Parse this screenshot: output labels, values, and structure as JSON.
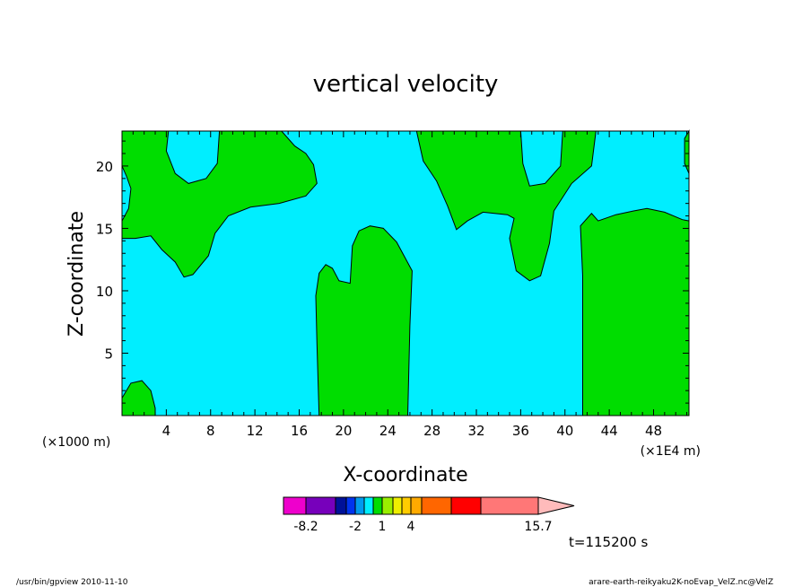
{
  "chart_data": {
    "type": "heatmap",
    "title": "vertical velocity",
    "xlabel": "X-coordinate",
    "ylabel": "Z-coordinate",
    "x_unit_left": "(×1000 m)",
    "x_unit_right": "(×1E4 m)",
    "xlim": [
      0,
      51.2
    ],
    "ylim": [
      0,
      22.8
    ],
    "x_ticks": [
      4,
      8,
      12,
      16,
      20,
      24,
      28,
      32,
      36,
      40,
      44,
      48
    ],
    "y_ticks": [
      5,
      10,
      15,
      20
    ],
    "background_level_color": "#00eeff",
    "contour_fill_color": "#00dd00",
    "regions": [
      {
        "name": "upper-left",
        "points": [
          [
            0,
            22.8
          ],
          [
            0,
            20
          ],
          [
            0.4,
            19.2
          ],
          [
            0.8,
            18.2
          ],
          [
            0.6,
            16.6
          ],
          [
            0,
            15.6
          ],
          [
            0,
            14.2
          ],
          [
            1.2,
            14.2
          ],
          [
            2.6,
            14.4
          ],
          [
            3.6,
            13.3
          ],
          [
            4.8,
            12.3
          ],
          [
            5.6,
            11.1
          ],
          [
            6.4,
            11.3
          ],
          [
            7.8,
            12.8
          ],
          [
            8.4,
            14.6
          ],
          [
            9.6,
            16.0
          ],
          [
            11.6,
            16.7
          ],
          [
            14.2,
            17.0
          ],
          [
            16.6,
            17.6
          ],
          [
            17.6,
            18.6
          ],
          [
            17.3,
            20.1
          ],
          [
            16.6,
            21.0
          ],
          [
            15.6,
            21.6
          ],
          [
            14.4,
            22.8
          ],
          [
            8.8,
            22.8
          ],
          [
            8.6,
            20.2
          ],
          [
            7.6,
            19.0
          ],
          [
            6.0,
            18.6
          ],
          [
            4.8,
            19.4
          ],
          [
            4.0,
            21.2
          ],
          [
            4.2,
            22.8
          ]
        ]
      },
      {
        "name": "upper-right-band",
        "points": [
          [
            26.6,
            22.8
          ],
          [
            27.2,
            20.4
          ],
          [
            28.4,
            18.8
          ],
          [
            29.4,
            16.8
          ],
          [
            30.2,
            14.9
          ],
          [
            31.2,
            15.6
          ],
          [
            32.6,
            16.3
          ],
          [
            34.8,
            16.1
          ],
          [
            35.4,
            15.8
          ],
          [
            35.0,
            14.2
          ],
          [
            35.6,
            11.6
          ],
          [
            36.8,
            10.8
          ],
          [
            37.8,
            11.2
          ],
          [
            38.6,
            13.8
          ],
          [
            39.0,
            16.4
          ],
          [
            40.6,
            18.6
          ],
          [
            42.4,
            20.0
          ],
          [
            42.8,
            22.8
          ],
          [
            39.8,
            22.8
          ],
          [
            39.6,
            20.0
          ],
          [
            38.2,
            18.6
          ],
          [
            36.8,
            18.4
          ],
          [
            36.2,
            20.2
          ],
          [
            36.0,
            22.8
          ]
        ]
      },
      {
        "name": "right-column",
        "points": [
          [
            41.6,
            0
          ],
          [
            41.6,
            11.2
          ],
          [
            41.4,
            15.2
          ],
          [
            42.0,
            15.8
          ],
          [
            42.4,
            16.2
          ],
          [
            43.0,
            15.6
          ],
          [
            44.6,
            16.1
          ],
          [
            46.2,
            16.4
          ],
          [
            47.4,
            16.6
          ],
          [
            49.0,
            16.3
          ],
          [
            50.6,
            15.7
          ],
          [
            51.2,
            15.6
          ],
          [
            51.2,
            0
          ]
        ]
      },
      {
        "name": "right-corner",
        "points": [
          [
            51.2,
            22.8
          ],
          [
            50.8,
            22.2
          ],
          [
            50.8,
            20.2
          ],
          [
            51.2,
            19.4
          ]
        ]
      },
      {
        "name": "center-column",
        "points": [
          [
            17.8,
            0
          ],
          [
            17.6,
            5.8
          ],
          [
            17.5,
            9.6
          ],
          [
            17.8,
            11.4
          ],
          [
            18.4,
            12.1
          ],
          [
            19.0,
            11.8
          ],
          [
            19.6,
            10.8
          ],
          [
            20.6,
            10.6
          ],
          [
            20.8,
            13.6
          ],
          [
            21.4,
            14.8
          ],
          [
            22.4,
            15.2
          ],
          [
            23.6,
            15.0
          ],
          [
            24.8,
            13.9
          ],
          [
            26.2,
            11.6
          ],
          [
            26.0,
            7.2
          ],
          [
            25.8,
            0
          ]
        ]
      },
      {
        "name": "bottom-left",
        "points": [
          [
            0,
            0
          ],
          [
            0,
            1.4
          ],
          [
            0.8,
            2.6
          ],
          [
            1.8,
            2.8
          ],
          [
            2.6,
            2.0
          ],
          [
            3.0,
            0.6
          ],
          [
            3.0,
            0
          ]
        ]
      }
    ],
    "colorbar": {
      "colors": [
        "#ee00cc",
        "#7700bb",
        "#001199",
        "#0033ee",
        "#0099ee",
        "#00eeff",
        "#00dd00",
        "#99ee00",
        "#eeee00",
        "#ffcc00",
        "#ffaa00",
        "#ff6600",
        "#ff0000",
        "#ff7777"
      ],
      "tick_labels": [
        "-8.2",
        "-2",
        "1",
        "4",
        "15.7"
      ]
    },
    "time_label": "t=115200 s",
    "footer_left": "/usr/bin/gpview   2010-11-10",
    "footer_right": "arare-earth-reikyaku2K-noEvap_VelZ.nc@VelZ"
  }
}
